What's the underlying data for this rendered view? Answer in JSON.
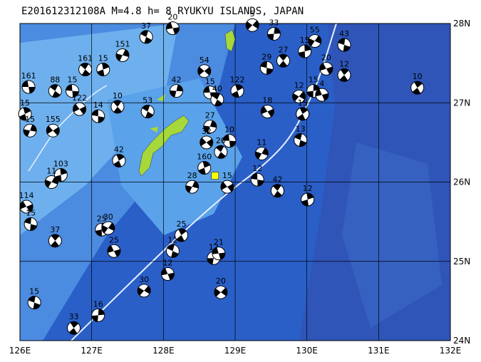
{
  "map": {
    "title": "E201612312108A  M=4.8  h=  8  RYUKYU ISLANDS, JAPAN",
    "lonlim": [
      126,
      132
    ],
    "latlim": [
      24,
      28
    ],
    "lon_ticks": [
      {
        "value": 126,
        "label": "126E"
      },
      {
        "value": 127,
        "label": "127E"
      },
      {
        "value": 128,
        "label": "128E"
      },
      {
        "value": 129,
        "label": "129E"
      },
      {
        "value": 130,
        "label": "130E"
      },
      {
        "value": 131,
        "label": "131E"
      },
      {
        "value": 132,
        "label": "132E"
      }
    ],
    "lat_ticks": [
      {
        "value": 24,
        "label": "24N"
      },
      {
        "value": 25,
        "label": "25N"
      },
      {
        "value": 26,
        "label": "26N"
      },
      {
        "value": 27,
        "label": "27N"
      },
      {
        "value": 28,
        "label": "28N"
      }
    ],
    "event_star": {
      "lon": 128.72,
      "lat": 26.08
    },
    "events": [
      {
        "lon": 126.12,
        "lat": 27.2,
        "depth": 161
      },
      {
        "lon": 126.49,
        "lat": 27.15,
        "depth": 88
      },
      {
        "lon": 126.07,
        "lat": 26.86,
        "depth": 15
      },
      {
        "lon": 126.14,
        "lat": 26.65,
        "depth": 15
      },
      {
        "lon": 126.46,
        "lat": 26.65,
        "depth": 155
      },
      {
        "lon": 126.73,
        "lat": 27.15,
        "depth": 15
      },
      {
        "lon": 126.91,
        "lat": 27.42,
        "depth": 161
      },
      {
        "lon": 127.16,
        "lat": 27.42,
        "depth": 15
      },
      {
        "lon": 127.43,
        "lat": 27.6,
        "depth": 151
      },
      {
        "lon": 126.83,
        "lat": 26.92,
        "depth": 122
      },
      {
        "lon": 127.09,
        "lat": 26.83,
        "depth": 14
      },
      {
        "lon": 127.36,
        "lat": 26.95,
        "depth": 10
      },
      {
        "lon": 126.57,
        "lat": 26.09,
        "depth": 103
      },
      {
        "lon": 126.44,
        "lat": 26.0,
        "depth": 11
      },
      {
        "lon": 126.09,
        "lat": 25.69,
        "depth": 114
      },
      {
        "lon": 126.15,
        "lat": 25.47,
        "depth": 15
      },
      {
        "lon": 126.49,
        "lat": 25.26,
        "depth": 37
      },
      {
        "lon": 127.14,
        "lat": 25.4,
        "depth": 25
      },
      {
        "lon": 127.23,
        "lat": 25.42,
        "depth": 30
      },
      {
        "lon": 127.31,
        "lat": 25.13,
        "depth": 25
      },
      {
        "lon": 126.2,
        "lat": 24.48,
        "depth": 15
      },
      {
        "lon": 126.75,
        "lat": 24.16,
        "depth": 33
      },
      {
        "lon": 127.09,
        "lat": 24.32,
        "depth": 16
      },
      {
        "lon": 127.73,
        "lat": 24.63,
        "depth": 30
      },
      {
        "lon": 128.06,
        "lat": 24.84,
        "depth": 12
      },
      {
        "lon": 128.13,
        "lat": 25.13,
        "depth": 12
      },
      {
        "lon": 128.25,
        "lat": 25.33,
        "depth": 25
      },
      {
        "lon": 128.7,
        "lat": 25.04,
        "depth": 12
      },
      {
        "lon": 128.8,
        "lat": 24.61,
        "depth": 20
      },
      {
        "lon": 128.77,
        "lat": 25.1,
        "depth": 21
      },
      {
        "lon": 127.78,
        "lat": 26.89,
        "depth": 53
      },
      {
        "lon": 127.38,
        "lat": 26.27,
        "depth": 42
      },
      {
        "lon": 128.18,
        "lat": 27.15,
        "depth": 42
      },
      {
        "lon": 128.57,
        "lat": 27.4,
        "depth": 54
      },
      {
        "lon": 128.65,
        "lat": 27.13,
        "depth": 15
      },
      {
        "lon": 128.75,
        "lat": 27.04,
        "depth": 40
      },
      {
        "lon": 129.03,
        "lat": 27.15,
        "depth": 122
      },
      {
        "lon": 128.65,
        "lat": 26.7,
        "depth": 27
      },
      {
        "lon": 128.6,
        "lat": 26.5,
        "depth": 32
      },
      {
        "lon": 128.92,
        "lat": 26.52,
        "depth": 10
      },
      {
        "lon": 128.8,
        "lat": 26.38,
        "depth": 20
      },
      {
        "lon": 128.57,
        "lat": 26.18,
        "depth": 160
      },
      {
        "lon": 128.4,
        "lat": 25.94,
        "depth": 28
      },
      {
        "lon": 128.89,
        "lat": 25.94,
        "depth": 15
      },
      {
        "lon": 129.31,
        "lat": 26.03,
        "depth": 12
      },
      {
        "lon": 129.59,
        "lat": 25.89,
        "depth": 42
      },
      {
        "lon": 130.01,
        "lat": 25.78,
        "depth": 12
      },
      {
        "lon": 129.37,
        "lat": 26.36,
        "depth": 11
      },
      {
        "lon": 129.45,
        "lat": 26.89,
        "depth": 18
      },
      {
        "lon": 129.44,
        "lat": 27.44,
        "depth": 29
      },
      {
        "lon": 129.67,
        "lat": 27.53,
        "depth": 27
      },
      {
        "lon": 129.97,
        "lat": 27.65,
        "depth": 15
      },
      {
        "lon": 130.11,
        "lat": 27.78,
        "depth": 55
      },
      {
        "lon": 130.27,
        "lat": 27.43,
        "depth": 20
      },
      {
        "lon": 130.52,
        "lat": 27.73,
        "depth": 43
      },
      {
        "lon": 130.52,
        "lat": 27.35,
        "depth": 12
      },
      {
        "lon": 130.09,
        "lat": 27.15,
        "depth": 15
      },
      {
        "lon": 129.89,
        "lat": 27.08,
        "depth": 12
      },
      {
        "lon": 130.21,
        "lat": 27.1,
        "depth": 4
      },
      {
        "lon": 129.91,
        "lat": 26.53,
        "depth": 13
      },
      {
        "lon": 131.54,
        "lat": 27.19,
        "depth": 10
      },
      {
        "lon": 129.54,
        "lat": 27.87,
        "depth": 33
      },
      {
        "lon": 129.24,
        "lat": 27.98,
        "depth": 5
      },
      {
        "lon": 128.13,
        "lat": 27.94,
        "depth": 20
      },
      {
        "lon": 127.76,
        "lat": 27.83,
        "depth": 37
      },
      {
        "lon": 129.94,
        "lat": 26.86,
        "depth": 15
      }
    ]
  }
}
